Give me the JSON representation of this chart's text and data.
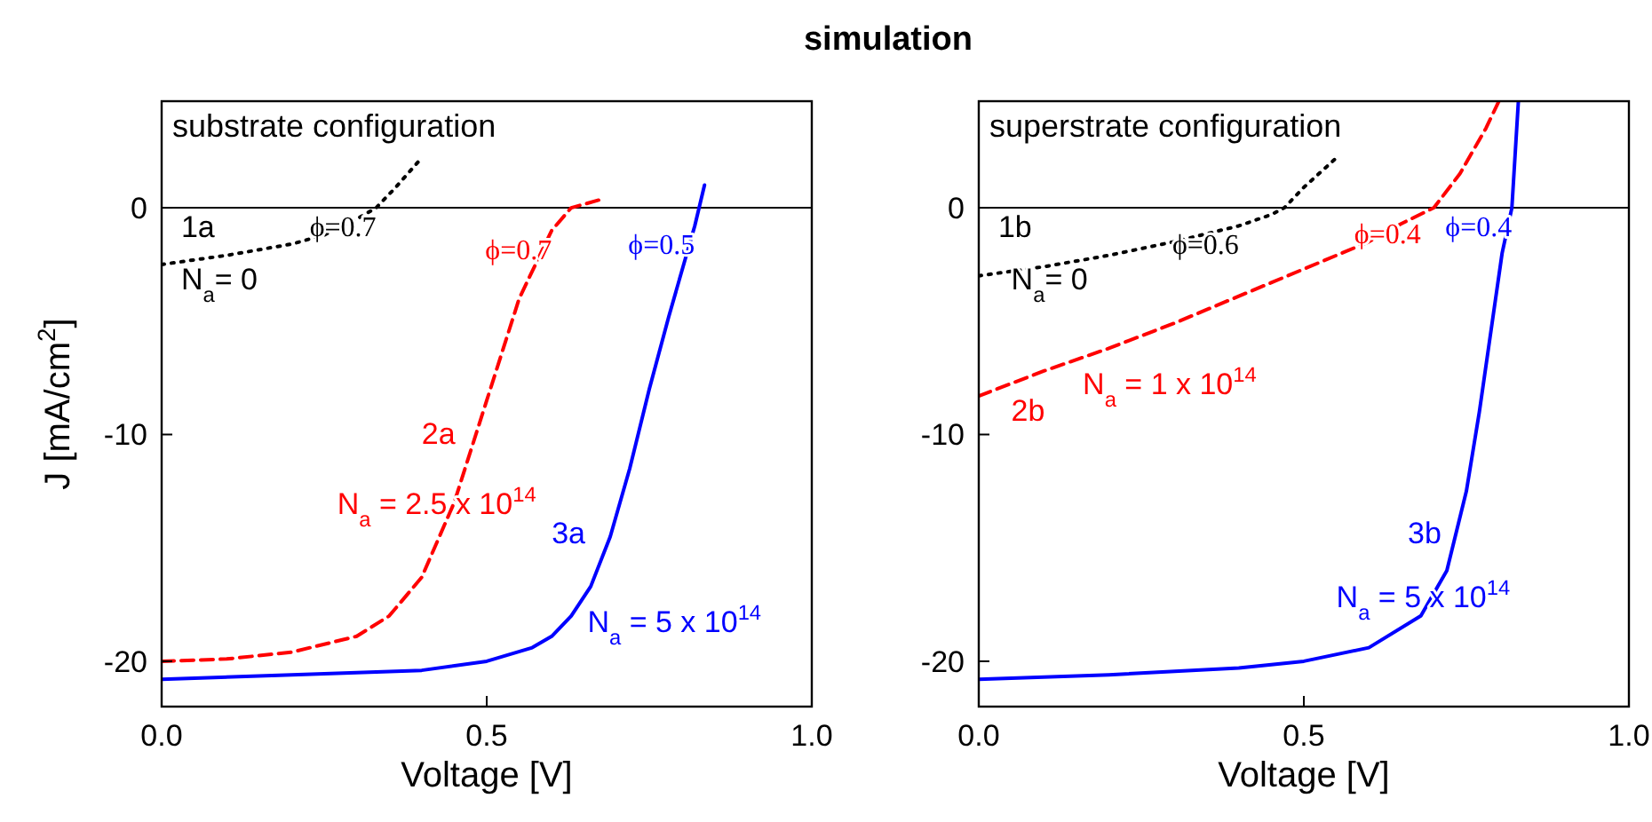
{
  "chart_data": [
    {
      "type": "line",
      "title": "simulation",
      "subtitle": "substrate configuration",
      "xlabel": "Voltage [V]",
      "ylabel": "J [mA/cm$^{2}$]",
      "xlim": [
        0,
        1
      ],
      "ylim": [
        -22,
        4.7
      ],
      "xticks": [
        {
          "value": 0,
          "label": "0.0"
        },
        {
          "value": 0.5,
          "label": "0.5"
        },
        {
          "value": 1,
          "label": "1.0"
        }
      ],
      "yticks": [
        -20,
        -10,
        0
      ],
      "ref_lines": [
        {
          "axis": "y",
          "value": 0,
          "color": "#000000"
        }
      ],
      "series": [
        {
          "name": "1a\nN$_{a}$= 0",
          "color": "#000000",
          "line_style": "dotted",
          "x": [
            0,
            0.1,
            0.2,
            0.25,
            0.3,
            0.33,
            0.36,
            0.4
          ],
          "values": [
            -2.5,
            -2.1,
            -1.6,
            -1.2,
            -0.5,
            0,
            0.9,
            2.2
          ]
        },
        {
          "name": "2a\nN$_{a}$ = 2.5 x 10$^{14}$",
          "color": "#ff0000",
          "line_style": "dashed",
          "x": [
            0,
            0.1,
            0.2,
            0.3,
            0.35,
            0.4,
            0.45,
            0.5,
            0.55,
            0.6,
            0.63,
            0.68
          ],
          "values": [
            -20,
            -19.9,
            -19.6,
            -18.9,
            -18,
            -16.3,
            -13,
            -8.5,
            -4,
            -1,
            0,
            0.4
          ]
        },
        {
          "name": "3a\nN$_{a}$ = 5 x 10$^{14}$",
          "color": "#0000ff",
          "line_style": "solid",
          "x": [
            0,
            0.2,
            0.4,
            0.5,
            0.57,
            0.6,
            0.63,
            0.66,
            0.69,
            0.72,
            0.75,
            0.78,
            0.8,
            0.82,
            0.835
          ],
          "values": [
            -20.8,
            -20.6,
            -20.4,
            -20,
            -19.4,
            -18.9,
            -18,
            -16.7,
            -14.5,
            -11.5,
            -8,
            -4.8,
            -2.8,
            -0.8,
            1
          ]
        }
      ],
      "annotations": [
        {
          "text": "ϕ=0.7",
          "x": 0.33,
          "y": 0
        },
        {
          "text": "ϕ=0.7",
          "x": 0.6,
          "y": -1
        },
        {
          "text": "ϕ=0.5",
          "x": 0.82,
          "y": -0.8
        }
      ]
    },
    {
      "type": "line",
      "subtitle": "superstrate configuration",
      "xlabel": "Voltage [V]",
      "xlim": [
        0,
        1
      ],
      "ylim": [
        -22,
        4.7
      ],
      "xticks": [
        {
          "value": 0,
          "label": "0.0"
        },
        {
          "value": 0.5,
          "label": "0.5"
        },
        {
          "value": 1,
          "label": "1.0"
        }
      ],
      "yticks": [
        -20,
        -10,
        0
      ],
      "ref_lines": [
        {
          "axis": "y",
          "value": 0,
          "color": "#000000"
        }
      ],
      "series": [
        {
          "name": "1b\nN$_{a}$= 0",
          "color": "#000000",
          "line_style": "dotted",
          "x": [
            0,
            0.1,
            0.2,
            0.3,
            0.4,
            0.45,
            0.47,
            0.5,
            0.55
          ],
          "values": [
            -3,
            -2.6,
            -2.1,
            -1.5,
            -0.8,
            -0.3,
            0,
            0.9,
            2.2
          ]
        },
        {
          "name": "2b\nN$_{a}$ = 1 x 10$^{14}$",
          "color": "#ff0000",
          "line_style": "dashed",
          "x": [
            0,
            0.1,
            0.2,
            0.3,
            0.4,
            0.5,
            0.6,
            0.65,
            0.7,
            0.74,
            0.78,
            0.8
          ],
          "values": [
            -8.3,
            -7.2,
            -6.2,
            -5.1,
            -3.9,
            -2.7,
            -1.5,
            -0.7,
            0,
            1.5,
            3.5,
            4.7
          ]
        },
        {
          "name": "3b\nN$_{a}$ = 5 x 10$^{14}$",
          "color": "#0000ff",
          "line_style": "solid",
          "x": [
            0,
            0.2,
            0.4,
            0.5,
            0.6,
            0.68,
            0.72,
            0.75,
            0.77,
            0.79,
            0.805,
            0.82,
            0.83
          ],
          "values": [
            -20.8,
            -20.6,
            -20.3,
            -20,
            -19.4,
            -18,
            -16,
            -12.5,
            -9,
            -5,
            -2,
            0,
            4.7
          ]
        }
      ],
      "annotations": [
        {
          "text": "ϕ=0.6",
          "x": 0.4,
          "y": -0.8
        },
        {
          "text": "ϕ=0.4",
          "x": 0.68,
          "y": -0.3
        },
        {
          "text": "ϕ=0.4",
          "x": 0.82,
          "y": 0
        }
      ]
    }
  ]
}
